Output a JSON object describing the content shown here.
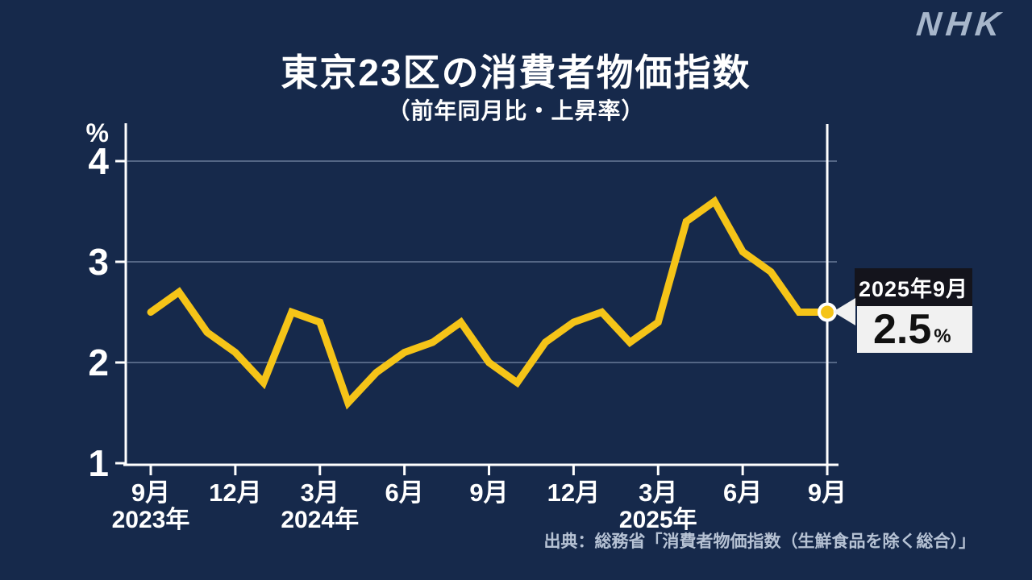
{
  "header": {
    "title": "東京23区の消費者物価指数",
    "subtitle": "（前年同月比・上昇率）"
  },
  "logo": {
    "text": "NHK",
    "color": "#a7b6cb"
  },
  "callout": {
    "date_label": "2025年9月",
    "value": "2.5",
    "unit": "%"
  },
  "source": {
    "text": "出典：総務省「消費者物価指数（生鮮食品を除く総合）」"
  },
  "colors": {
    "background": "#16294b",
    "line": "#f5c418",
    "axis": "#ffffff",
    "grid": "#546685",
    "callout_dark": "#14141c",
    "callout_light": "#f1f1f1"
  },
  "chart_data": {
    "type": "line",
    "title": "東京23区の消費者物価指数",
    "subtitle": "（前年同月比・上昇率）",
    "ylabel": "%",
    "ylim": [
      1,
      4.4
    ],
    "y_ticks": [
      4,
      3,
      2,
      1
    ],
    "gridline_values": [
      4,
      3,
      2
    ],
    "grid": "horizontal-only",
    "legend_position": "none",
    "x": [
      "2023-09",
      "2023-10",
      "2023-11",
      "2023-12",
      "2024-01",
      "2024-02",
      "2024-03",
      "2024-04",
      "2024-05",
      "2024-06",
      "2024-07",
      "2024-08",
      "2024-09",
      "2024-10",
      "2024-11",
      "2024-12",
      "2025-01",
      "2025-02",
      "2025-03",
      "2025-04",
      "2025-05",
      "2025-06",
      "2025-07",
      "2025-08",
      "2025-09"
    ],
    "values": [
      2.5,
      2.7,
      2.3,
      2.1,
      1.8,
      2.5,
      2.4,
      1.6,
      1.9,
      2.1,
      2.2,
      2.4,
      2.0,
      1.8,
      2.2,
      2.4,
      2.5,
      2.2,
      2.4,
      3.4,
      3.6,
      3.1,
      2.9,
      2.5,
      2.5
    ],
    "x_tick_indices": [
      0,
      3,
      6,
      9,
      12,
      15,
      18,
      21,
      24
    ],
    "x_tick_labels": [
      "9月",
      "12月",
      "3月",
      "6月",
      "9月",
      "12月",
      "3月",
      "6月",
      "9月"
    ],
    "year_labels": [
      {
        "text": "2023年",
        "index": 0
      },
      {
        "text": "2024年",
        "index": 6
      },
      {
        "text": "2025年",
        "index": 18
      }
    ],
    "highlight": {
      "index": 24,
      "label": "2025年9月",
      "value": 2.5,
      "value_text": "2.5",
      "unit": "%"
    },
    "line_color": "#f5c418",
    "axis_color": "#ffffff",
    "grid_color": "#546685"
  }
}
